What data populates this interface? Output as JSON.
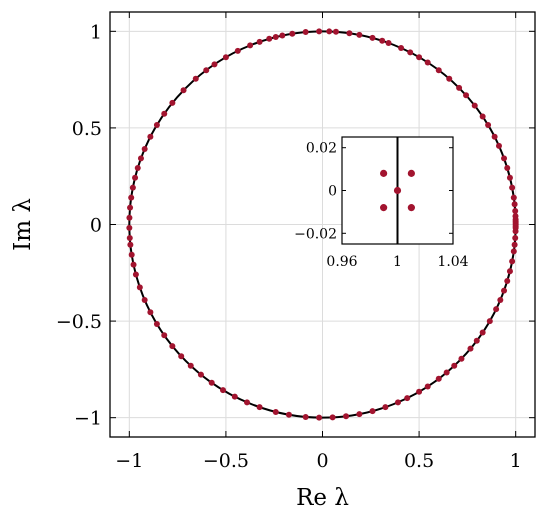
{
  "chart_data": [
    {
      "type": "scatter",
      "title": "",
      "xlabel": "Re λ",
      "ylabel": "Im λ",
      "xlim": [
        -1.1,
        1.1
      ],
      "ylim": [
        -1.1,
        1.1
      ],
      "xticks": [
        -1,
        -0.5,
        0,
        0.5,
        1
      ],
      "yticks": [
        -1,
        -0.5,
        0,
        0.5,
        1
      ],
      "xtick_labels": [
        "−1",
        "−0.5",
        "0",
        "0.5",
        "1"
      ],
      "ytick_labels": [
        "−1",
        "−0.5",
        "0",
        "0.5",
        "1"
      ],
      "grid": true,
      "unit_circle": true,
      "series": [
        {
          "color": "#a2142f",
          "angles_deg": [
            0,
            0.5,
            1,
            1.5,
            2.5,
            4,
            6,
            8,
            11,
            14,
            17,
            20,
            24,
            27,
            31,
            34,
            38,
            42,
            45,
            49,
            53,
            57,
            60,
            63,
            66,
            70,
            72,
            75,
            79,
            82,
            86,
            88,
            91,
            95,
            99,
            102,
            104,
            106,
            109,
            112,
            116,
            120,
            124,
            127,
            131,
            136,
            141,
            145,
            149,
            153,
            157,
            160,
            163,
            166,
            169,
            172,
            175,
            178,
            181,
            184,
            186,
            189,
            192,
            195,
            199,
            203,
            207,
            211,
            215,
            219,
            223,
            227,
            231,
            235,
            239,
            243,
            247,
            251,
            256,
            260,
            265,
            269,
            273,
            277,
            281,
            285,
            289,
            293,
            296,
            300,
            303,
            307,
            310,
            313,
            316,
            320,
            323,
            326,
            330,
            334,
            337,
            340,
            343,
            346,
            349,
            352,
            354,
            356,
            358,
            359,
            359.5
          ]
        }
      ]
    },
    {
      "type": "scatter",
      "title": "",
      "xlim": [
        0.96,
        1.04
      ],
      "ylim": [
        -0.025,
        0.025
      ],
      "xticks": [
        0.96,
        1,
        1.04
      ],
      "yticks": [
        -0.02,
        0,
        0.02
      ],
      "xtick_labels": [
        "0.96",
        "1",
        "1.04"
      ],
      "ytick_labels": [
        "−0.02",
        "0",
        "0.02"
      ],
      "grid": false,
      "points": [
        {
          "x": 0.99,
          "y": 0.008
        },
        {
          "x": 1.01,
          "y": 0.008
        },
        {
          "x": 1.0,
          "y": 0.0
        },
        {
          "x": 0.99,
          "y": -0.008
        },
        {
          "x": 1.01,
          "y": -0.008
        }
      ],
      "line_x": 1.0
    }
  ]
}
